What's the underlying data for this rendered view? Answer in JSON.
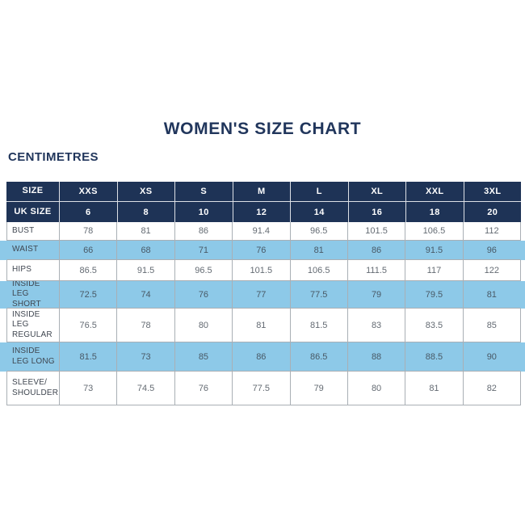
{
  "page": {
    "background": "#ffffff"
  },
  "colors": {
    "navy_header": "#1e3356",
    "row_highlight_blue": "#8dc9e8",
    "grid_border": "#a9afb5",
    "title_text": "#21365c"
  },
  "chart_data": {
    "type": "table",
    "title": "WOMEN'S SIZE CHART",
    "units_label": "CENTIMETRES",
    "columns": [
      "SIZE",
      "XXS",
      "XS",
      "S",
      "M",
      "L",
      "XL",
      "XXL",
      "3XL"
    ],
    "uk_row": [
      "UK SIZE",
      6,
      8,
      10,
      12,
      14,
      16,
      18,
      20
    ],
    "rows": [
      {
        "label": "BUST",
        "values": [
          78,
          81,
          86,
          91.4,
          96.5,
          101.5,
          106.5,
          112
        ],
        "highlighted": false
      },
      {
        "label": "WAIST",
        "values": [
          66,
          68,
          71,
          76,
          81,
          86,
          91.5,
          96
        ],
        "highlighted": true
      },
      {
        "label": "HIPS",
        "values": [
          86.5,
          91.5,
          96.5,
          101.5,
          106.5,
          111.5,
          117,
          122
        ],
        "highlighted": false
      },
      {
        "label": "INSIDE LEG SHORT",
        "values": [
          72.5,
          74,
          76,
          77,
          77.5,
          79,
          79.5,
          81
        ],
        "highlighted": true
      },
      {
        "label": "INSIDE LEG REGULAR",
        "values": [
          76.5,
          78,
          80,
          81,
          81.5,
          83,
          83.5,
          85
        ],
        "highlighted": false
      },
      {
        "label": "INSIDE LEG LONG",
        "values": [
          81.5,
          73,
          85,
          86,
          86.5,
          88,
          88.5,
          90
        ],
        "highlighted": true
      },
      {
        "label": "SLEEVE/ SHOULDER",
        "values": [
          73,
          74.5,
          76,
          77.5,
          79,
          80,
          81,
          82
        ],
        "highlighted": false
      }
    ]
  }
}
